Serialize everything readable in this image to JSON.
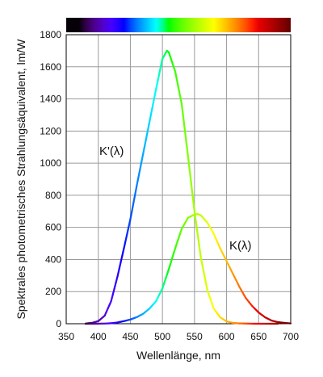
{
  "chart_data": {
    "type": "line",
    "title": "",
    "xlabel": "Wellenlänge, nm",
    "ylabel": "Spektrales photometrisches Strahlungsäquivalent, lm/W",
    "xlim": [
      350,
      700
    ],
    "ylim": [
      0,
      1800
    ],
    "x_ticks": [
      350,
      400,
      450,
      500,
      550,
      600,
      650,
      700
    ],
    "y_ticks": [
      0,
      200,
      400,
      600,
      800,
      1000,
      1200,
      1400,
      1600,
      1800
    ],
    "grid": true,
    "color_bar": "visible spectrum gradient above plot",
    "series": [
      {
        "name": "K'(λ)",
        "x": [
          380,
          390,
          400,
          410,
          420,
          430,
          440,
          450,
          460,
          470,
          480,
          490,
          500,
          507,
          510,
          520,
          530,
          540,
          550,
          560,
          570,
          580,
          590,
          600,
          610,
          620,
          630,
          640,
          650,
          660,
          670,
          680
        ],
        "values": [
          1,
          5,
          16,
          50,
          140,
          295,
          470,
          650,
          860,
          1060,
          1260,
          1460,
          1650,
          1700,
          1690,
          1570,
          1370,
          1040,
          700,
          410,
          210,
          95,
          40,
          15,
          5,
          2,
          1,
          0,
          0,
          0,
          0,
          0
        ]
      },
      {
        "name": "K(λ)",
        "x": [
          380,
          390,
          400,
          410,
          420,
          430,
          440,
          450,
          460,
          470,
          480,
          490,
          500,
          510,
          520,
          530,
          540,
          550,
          555,
          560,
          570,
          580,
          590,
          600,
          610,
          620,
          630,
          640,
          650,
          660,
          670,
          680,
          690,
          700
        ],
        "values": [
          0,
          0,
          0,
          1,
          3,
          8,
          16,
          26,
          41,
          62,
          95,
          140,
          220,
          340,
          470,
          590,
          660,
          680,
          683,
          675,
          630,
          560,
          470,
          390,
          310,
          230,
          160,
          110,
          70,
          40,
          20,
          10,
          5,
          2
        ]
      }
    ]
  },
  "labels": {
    "kprime": "K'(λ)",
    "k": "K(λ)"
  }
}
